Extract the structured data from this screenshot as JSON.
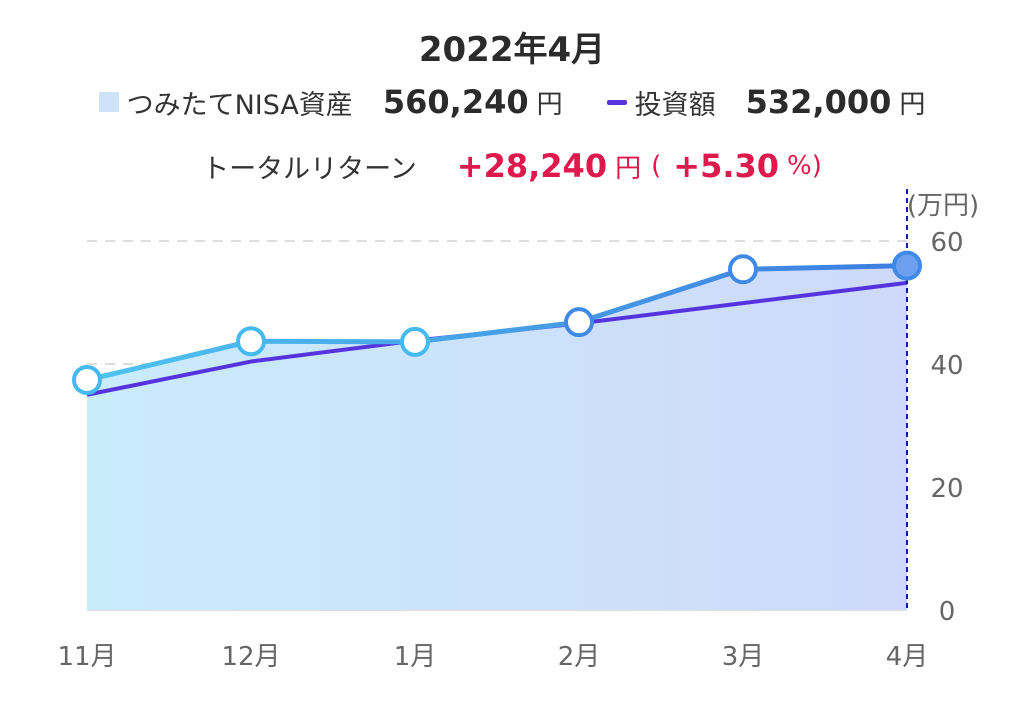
{
  "header": {
    "title": "2022年4月",
    "legend": {
      "asset_label": "つみたてNISA資産",
      "asset_value": "560,240",
      "asset_unit": "円",
      "invest_label": "投資額",
      "invest_value": "532,000",
      "invest_unit": "円"
    },
    "return": {
      "label": "トータルリターン",
      "amount": "+28,240",
      "unit": "円",
      "open": "(",
      "percent": "+5.30",
      "percent_unit": "%)"
    }
  },
  "colors": {
    "asset_line_start": "#4fc3f0",
    "asset_line_end": "#3d7de0",
    "invest_line": "#5533dd",
    "area_left": "#c9ecfb",
    "area_right": "#cfd9fb",
    "return_red": "#e0194c",
    "cursor": "#1a1aa0"
  },
  "chart_data": {
    "type": "line",
    "categories": [
      "11月",
      "12月",
      "1月",
      "2月",
      "3月",
      "4月"
    ],
    "series": [
      {
        "name": "つみたてNISA資産",
        "values": [
          37.4,
          43.7,
          43.6,
          46.8,
          55.4,
          56.0
        ],
        "style": "area+markers"
      },
      {
        "name": "投資額",
        "values": [
          35.0,
          40.4,
          43.8,
          46.6,
          49.9,
          53.2
        ],
        "style": "line"
      }
    ],
    "unit_label": "(万円)",
    "yticks": [
      0,
      20,
      40,
      60
    ],
    "ylim": [
      0,
      60
    ],
    "grid": "dashed-horizontal",
    "y_axis_side": "right",
    "highlight_index": 5
  }
}
